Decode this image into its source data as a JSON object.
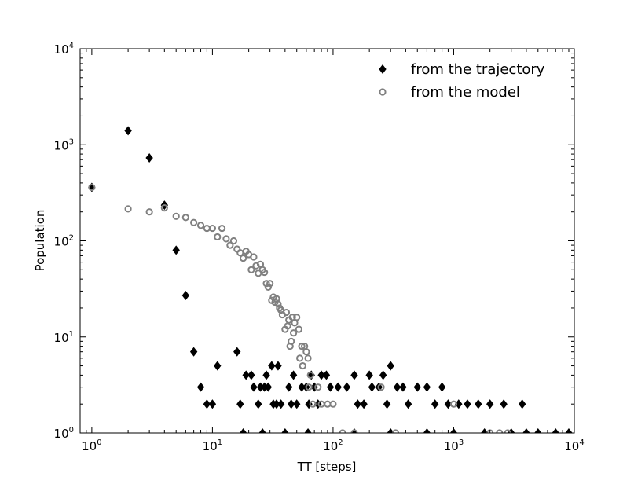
{
  "chart_data": {
    "type": "scatter",
    "xlabel": "TT [steps]",
    "ylabel": "Population",
    "x_scale": "log",
    "y_scale": "log",
    "xlim": [
      0.8,
      10000
    ],
    "ylim": [
      1,
      10000
    ],
    "x_ticks": [
      {
        "base": "10",
        "exp": "0"
      },
      {
        "base": "10",
        "exp": "1"
      },
      {
        "base": "10",
        "exp": "2"
      },
      {
        "base": "10",
        "exp": "3"
      },
      {
        "base": "10",
        "exp": "4"
      }
    ],
    "y_ticks": [
      {
        "base": "10",
        "exp": "0"
      },
      {
        "base": "10",
        "exp": "1"
      },
      {
        "base": "10",
        "exp": "2"
      },
      {
        "base": "10",
        "exp": "3"
      },
      {
        "base": "10",
        "exp": "4"
      }
    ],
    "grid": false,
    "legend_position": "top-right",
    "series": [
      {
        "name": "from the trajectory",
        "marker": "filled-diamond",
        "color": "#000000",
        "points": [
          [
            1,
            360
          ],
          [
            2,
            1400
          ],
          [
            3,
            730
          ],
          [
            4,
            235
          ],
          [
            5,
            80
          ],
          [
            6,
            27
          ],
          [
            7,
            7
          ],
          [
            8,
            3
          ],
          [
            9,
            2
          ],
          [
            10,
            2
          ],
          [
            11,
            5
          ],
          [
            16,
            7
          ],
          [
            17,
            2
          ],
          [
            19,
            4
          ],
          [
            21,
            4
          ],
          [
            22,
            3
          ],
          [
            24,
            2
          ],
          [
            25,
            3
          ],
          [
            27,
            3
          ],
          [
            28,
            4
          ],
          [
            29,
            3
          ],
          [
            31,
            5
          ],
          [
            32,
            2
          ],
          [
            34,
            2
          ],
          [
            35,
            5
          ],
          [
            37,
            2
          ],
          [
            43,
            3
          ],
          [
            45,
            2
          ],
          [
            47,
            4
          ],
          [
            50,
            2
          ],
          [
            55,
            3
          ],
          [
            60,
            3
          ],
          [
            63,
            2
          ],
          [
            66,
            4
          ],
          [
            70,
            3
          ],
          [
            75,
            2
          ],
          [
            80,
            4
          ],
          [
            88,
            4
          ],
          [
            95,
            3
          ],
          [
            110,
            3
          ],
          [
            130,
            3
          ],
          [
            150,
            4
          ],
          [
            160,
            2
          ],
          [
            180,
            2
          ],
          [
            200,
            4
          ],
          [
            210,
            3
          ],
          [
            240,
            3
          ],
          [
            260,
            4
          ],
          [
            280,
            2
          ],
          [
            300,
            5
          ],
          [
            340,
            3
          ],
          [
            380,
            3
          ],
          [
            420,
            2
          ],
          [
            500,
            3
          ],
          [
            600,
            3
          ],
          [
            700,
            2
          ],
          [
            800,
            3
          ],
          [
            900,
            2
          ],
          [
            1100,
            2
          ],
          [
            1300,
            2
          ],
          [
            1600,
            2
          ],
          [
            2000,
            2
          ],
          [
            2600,
            2
          ],
          [
            3700,
            2
          ],
          [
            5000,
            1
          ],
          [
            7000,
            1
          ],
          [
            9000,
            1
          ],
          [
            18,
            1
          ],
          [
            26,
            1
          ],
          [
            40,
            1
          ],
          [
            62,
            1
          ],
          [
            150,
            1
          ],
          [
            300,
            1
          ],
          [
            600,
            1
          ],
          [
            1000,
            1
          ],
          [
            1800,
            1
          ],
          [
            3000,
            1
          ],
          [
            4000,
            1
          ]
        ]
      },
      {
        "name": "from the model",
        "marker": "open-circle",
        "color": "#808080",
        "points": [
          [
            1,
            360
          ],
          [
            2,
            215
          ],
          [
            3,
            200
          ],
          [
            4,
            220
          ],
          [
            5,
            180
          ],
          [
            6,
            175
          ],
          [
            7,
            155
          ],
          [
            8,
            145
          ],
          [
            9,
            135
          ],
          [
            10,
            135
          ],
          [
            11,
            110
          ],
          [
            12,
            135
          ],
          [
            13,
            105
          ],
          [
            14,
            90
          ],
          [
            15,
            100
          ],
          [
            16,
            82
          ],
          [
            17,
            75
          ],
          [
            18,
            66
          ],
          [
            19,
            78
          ],
          [
            20,
            72
          ],
          [
            21,
            50
          ],
          [
            22,
            68
          ],
          [
            23,
            55
          ],
          [
            24,
            46
          ],
          [
            25,
            57
          ],
          [
            26,
            50
          ],
          [
            27,
            47
          ],
          [
            28,
            36
          ],
          [
            29,
            33
          ],
          [
            30,
            36
          ],
          [
            31,
            24
          ],
          [
            32,
            26
          ],
          [
            33,
            23
          ],
          [
            34,
            25
          ],
          [
            35,
            22
          ],
          [
            36,
            20
          ],
          [
            37,
            19
          ],
          [
            38,
            17
          ],
          [
            40,
            12
          ],
          [
            41,
            18
          ],
          [
            42,
            13
          ],
          [
            43,
            15
          ],
          [
            44,
            8
          ],
          [
            45,
            9
          ],
          [
            46,
            16
          ],
          [
            47,
            11
          ],
          [
            48,
            14
          ],
          [
            50,
            16
          ],
          [
            52,
            12
          ],
          [
            53,
            6
          ],
          [
            55,
            8
          ],
          [
            56,
            5
          ],
          [
            58,
            8
          ],
          [
            60,
            7
          ],
          [
            62,
            6
          ],
          [
            63,
            3
          ],
          [
            65,
            4
          ],
          [
            68,
            2
          ],
          [
            75,
            3
          ],
          [
            80,
            2
          ],
          [
            90,
            2
          ],
          [
            100,
            2
          ],
          [
            120,
            1
          ],
          [
            150,
            1
          ],
          [
            250,
            3
          ],
          [
            330,
            1
          ],
          [
            1000,
            2
          ],
          [
            2000,
            1
          ],
          [
            2400,
            1
          ],
          [
            2800,
            1
          ]
        ]
      }
    ]
  }
}
